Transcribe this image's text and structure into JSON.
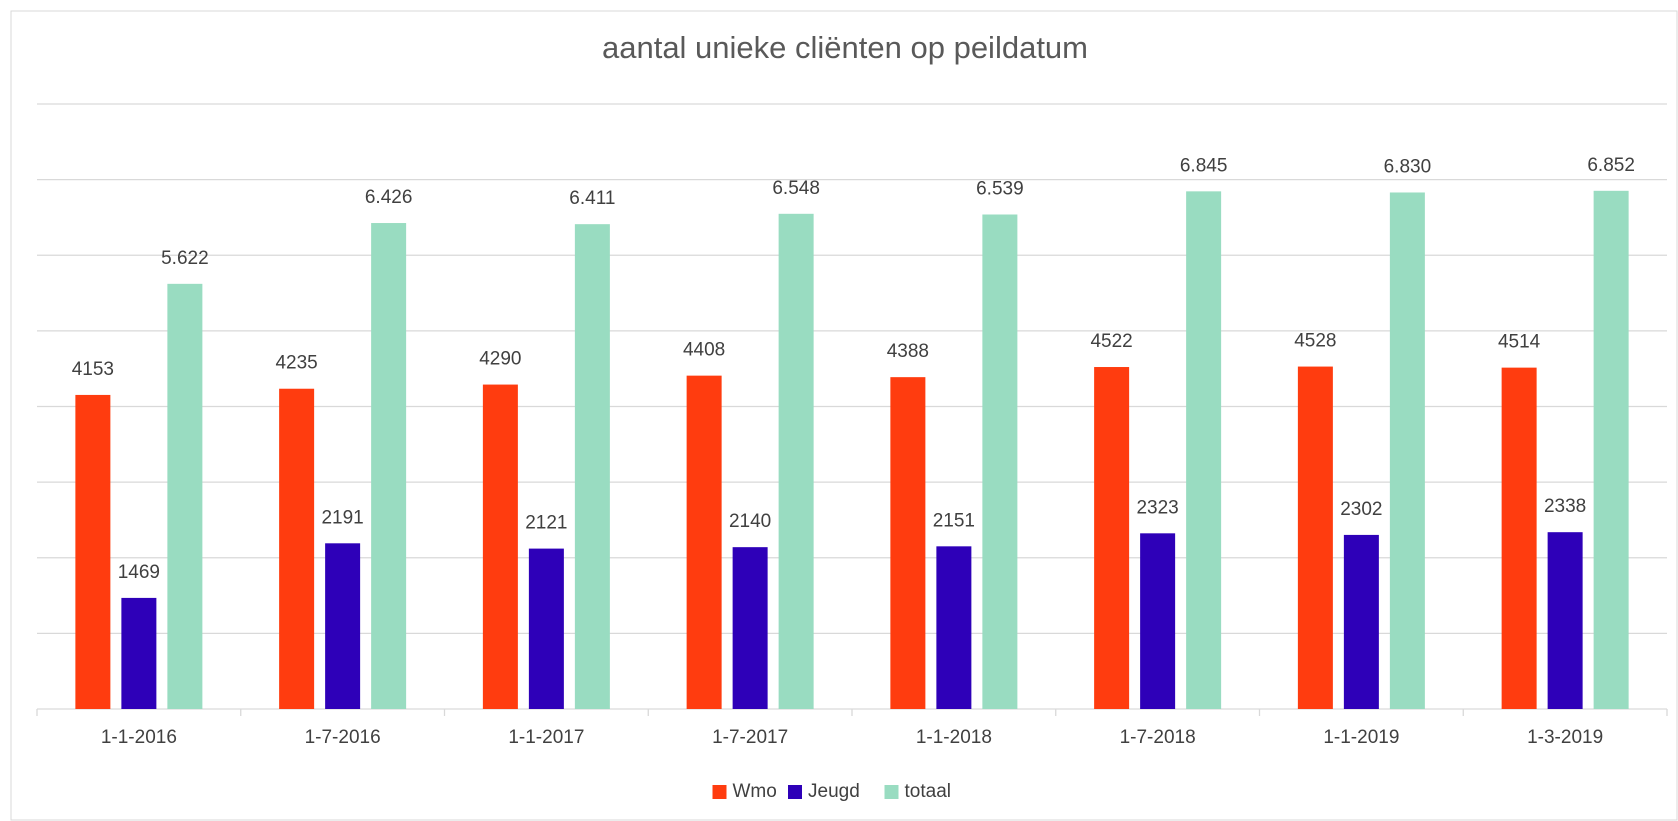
{
  "chart_data": {
    "type": "bar",
    "title": "aantal unieke cliënten op peildatum",
    "categories": [
      "1-1-2016",
      "1-7-2016",
      "1-1-2017",
      "1-7-2017",
      "1-1-2018",
      "1-7-2018",
      "1-1-2019",
      "1-3-2019"
    ],
    "series": [
      {
        "name": "Wmo",
        "color": "#ff3c0f",
        "values": [
          4153,
          4235,
          4290,
          4408,
          4388,
          4522,
          4528,
          4514
        ]
      },
      {
        "name": "Jeugd",
        "color": "#2e00b8",
        "values": [
          1469,
          2191,
          2121,
          2140,
          2151,
          2323,
          2302,
          2338
        ]
      },
      {
        "name": "totaal",
        "color": "#99dcc1",
        "values": [
          5622,
          6426,
          6411,
          6548,
          6539,
          6845,
          6830,
          6852
        ],
        "value_labels": [
          "5.622",
          "6.426",
          "6.411",
          "6.548",
          "6.539",
          "6.845",
          "6.830",
          "6.852"
        ]
      }
    ],
    "ylim": [
      0,
      8000
    ],
    "yticks": [
      0,
      1000,
      2000,
      3000,
      4000,
      5000,
      6000,
      7000,
      8000
    ],
    "grid": true,
    "legend": "bottom"
  }
}
